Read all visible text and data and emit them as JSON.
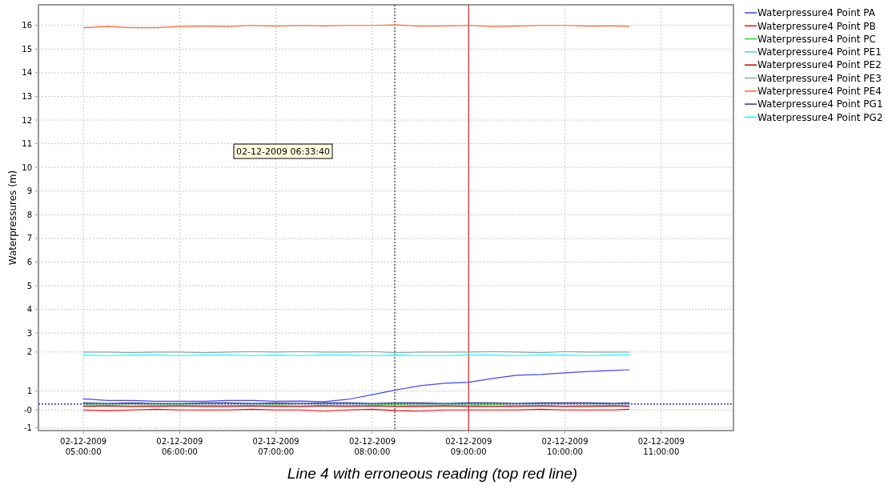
{
  "chart_data": {
    "type": "line",
    "ylabel": "Waterpressures (m)",
    "annotations": [
      "02-12-2009 06:33:40",
      "Line 4 with erroneous reading (top red line)"
    ],
    "x": [
      "2009-12-02T05:00",
      "2009-12-02T05:15",
      "2009-12-02T05:30",
      "2009-12-02T05:45",
      "2009-12-02T06:00",
      "2009-12-02T06:15",
      "2009-12-02T06:30",
      "2009-12-02T06:45",
      "2009-12-02T07:00",
      "2009-12-02T07:15",
      "2009-12-02T07:30",
      "2009-12-02T07:45",
      "2009-12-02T08:00",
      "2009-12-02T08:15",
      "2009-12-02T08:30",
      "2009-12-02T08:45",
      "2009-12-02T09:00",
      "2009-12-02T09:15",
      "2009-12-02T09:30",
      "2009-12-02T09:45",
      "2009-12-02T10:00",
      "2009-12-02T10:15",
      "2009-12-02T10:30",
      "2009-12-02T10:40"
    ],
    "series": [
      {
        "name": "Waterpressure4 Point PA",
        "color": "#4444ff",
        "values": [
          0.22,
          0.15,
          0.15,
          0.12,
          0.12,
          0.12,
          0.15,
          0.15,
          0.12,
          0.13,
          0.1,
          0.2,
          0.4,
          0.6,
          0.78,
          0.88,
          0.92,
          1.08,
          1.22,
          1.25,
          1.32,
          1.38,
          1.42,
          1.45
        ]
      },
      {
        "name": "Waterpressure4 Point PB",
        "color": "#ff0000",
        "values": [
          -0.25,
          -0.28,
          -0.25,
          -0.22,
          -0.25,
          -0.25,
          -0.25,
          -0.22,
          -0.25,
          -0.25,
          -0.3,
          -0.25,
          -0.22,
          -0.28,
          -0.3,
          -0.25,
          -0.25,
          -0.25,
          -0.25,
          -0.22,
          -0.25,
          -0.25,
          -0.25,
          -0.22
        ]
      },
      {
        "name": "Waterpressure4 Point PC",
        "color": "#33cc33",
        "values": [
          0.0,
          0.0,
          0.02,
          0.0,
          0.0,
          0.02,
          0.03,
          0.02,
          0.0,
          0.02,
          0.02,
          0.03,
          0.0,
          -0.02,
          0.02,
          0.0,
          0.0,
          -0.02,
          0.02,
          0.02,
          0.02,
          0.02,
          0.02,
          0.03
        ]
      },
      {
        "name": "Waterpressure4 Point PE1",
        "color": "#66cccc",
        "values": [
          -0.05,
          -0.05,
          -0.08,
          -0.05,
          -0.05,
          -0.05,
          -0.05,
          -0.05,
          -0.05,
          -0.08,
          -0.05,
          -0.05,
          -0.05,
          -0.08,
          -0.05,
          -0.05,
          -0.05,
          -0.08,
          -0.05,
          -0.05,
          -0.08,
          -0.05,
          -0.05,
          -0.05
        ]
      },
      {
        "name": "Waterpressure4 Point PE2",
        "color": "#cc0000",
        "values": [
          -0.1,
          -0.08,
          -0.1,
          -0.1,
          -0.08,
          -0.1,
          -0.1,
          -0.08,
          -0.1,
          -0.1,
          -0.08,
          -0.1,
          -0.08,
          -0.1,
          -0.1,
          -0.08,
          -0.1,
          -0.1,
          -0.1,
          -0.08,
          -0.1,
          -0.1,
          -0.08,
          -0.1
        ]
      },
      {
        "name": "Waterpressure4 Point PE3",
        "color": "#88aaaa",
        "values": [
          2.2,
          2.2,
          2.17,
          2.2,
          2.2,
          2.17,
          2.2,
          2.22,
          2.2,
          2.22,
          2.2,
          2.2,
          2.22,
          2.17,
          2.2,
          2.2,
          2.2,
          2.22,
          2.2,
          2.17,
          2.22,
          2.2,
          2.2,
          2.2
        ]
      },
      {
        "name": "Waterpressure4 Point PE4",
        "color": "#ff6633",
        "values": [
          15.9,
          15.95,
          15.9,
          15.9,
          15.95,
          15.97,
          15.95,
          16.0,
          15.97,
          16.0,
          15.98,
          16.0,
          16.0,
          16.02,
          15.97,
          15.98,
          16.0,
          15.95,
          15.97,
          16.0,
          16.0,
          15.97,
          15.98,
          15.95
        ]
      },
      {
        "name": "Waterpressure4 Point PG1",
        "color": "#333399",
        "values": [
          0.05,
          0.03,
          0.05,
          0.03,
          0.03,
          0.05,
          0.05,
          0.03,
          0.05,
          0.03,
          0.05,
          0.05,
          0.03,
          0.05,
          0.05,
          0.03,
          0.05,
          0.05,
          0.03,
          0.05,
          0.05,
          0.05,
          0.03,
          0.05
        ]
      },
      {
        "name": "Waterpressure4 Point PG2",
        "color": "#00ffff",
        "values": [
          2.07,
          2.05,
          2.07,
          2.07,
          2.05,
          2.07,
          2.07,
          2.05,
          2.07,
          2.05,
          2.07,
          2.07,
          2.05,
          2.07,
          2.05,
          2.05,
          2.07,
          2.07,
          2.05,
          2.07,
          2.07,
          2.05,
          2.07,
          2.08
        ]
      }
    ],
    "xlim": [
      "2009-12-02T04:32",
      "2009-12-02T11:45"
    ],
    "xticks": [
      {
        "value": "2009-12-02T05:00",
        "label": "02-12-2009\n05:00:00"
      },
      {
        "value": "2009-12-02T06:00",
        "label": "02-12-2009\n06:00:00"
      },
      {
        "value": "2009-12-02T07:00",
        "label": "02-12-2009\n07:00:00"
      },
      {
        "value": "2009-12-02T08:00",
        "label": "02-12-2009\n08:00:00"
      },
      {
        "value": "2009-12-02T09:00",
        "label": "02-12-2009\n09:00:00"
      },
      {
        "value": "2009-12-02T10:00",
        "label": "02-12-2009\n10:00:00"
      },
      {
        "value": "2009-12-02T11:00",
        "label": "02-12-2009\n11:00:00"
      }
    ],
    "ylim": [
      -1.12,
      16.87
    ],
    "yticks": [
      -1,
      {
        "value": -0.25,
        "label": "-0"
      },
      {
        "value": 0.55,
        "label": "1"
      },
      {
        "value": 2.2,
        "label": "2"
      },
      3,
      4,
      5,
      6,
      7,
      8,
      9,
      10,
      11,
      12,
      13,
      14,
      15,
      16
    ],
    "ref_lines": [
      {
        "axis": "x",
        "value": "2009-12-02T08:14",
        "color": "#000000",
        "line_style": "dotted"
      },
      {
        "axis": "x",
        "value": "2009-12-02T09:00",
        "color": "#cc0000",
        "line_style": "solid"
      },
      {
        "axis": "y",
        "value": 0,
        "color": "#0000ff",
        "line_style": "dotted"
      }
    ],
    "grid": true,
    "legend": "top right",
    "line_style": "solid",
    "marker": "none"
  }
}
